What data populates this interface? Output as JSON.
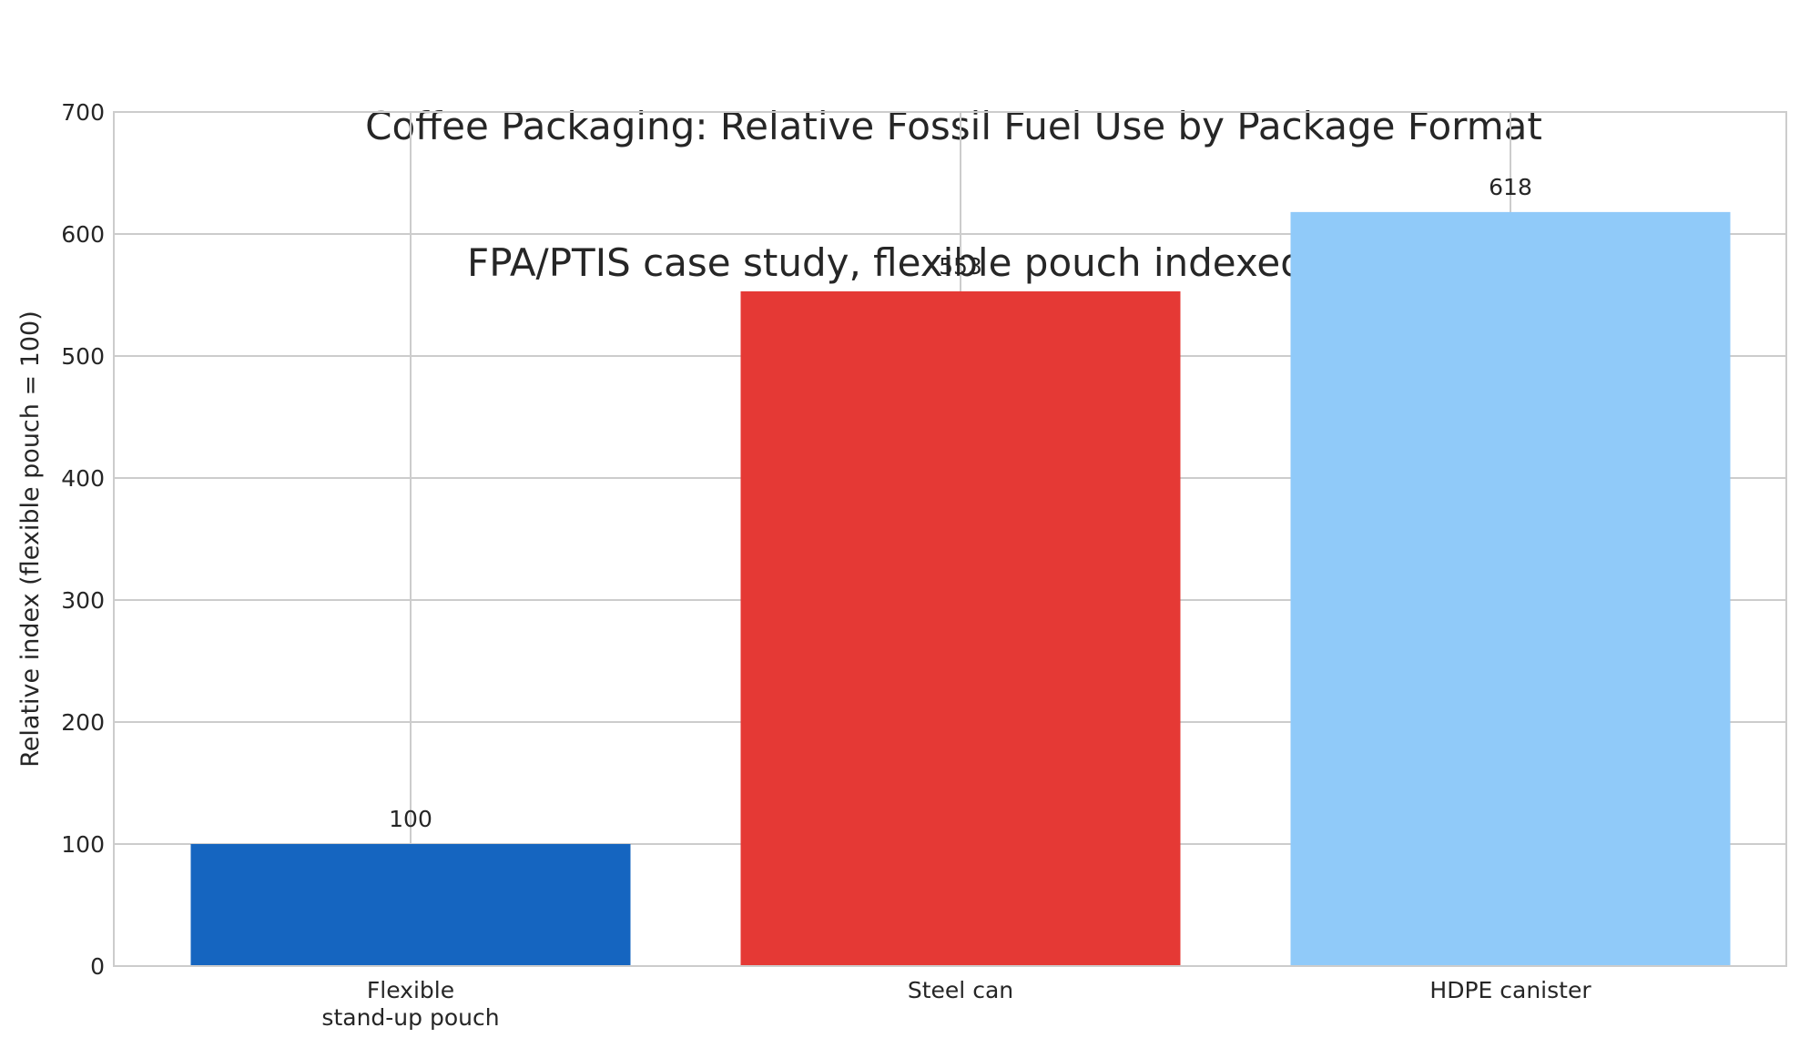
{
  "chart_data": {
    "type": "bar",
    "title": "Coffee Packaging: Relative Fossil Fuel Use by Package Format",
    "subtitle": "FPA/PTIS case study, flexible pouch indexed to 100",
    "xlabel": "",
    "ylabel": "Relative index (flexible pouch = 100)",
    "categories": [
      "Flexible\nstand-up pouch",
      "Steel can",
      "HDPE canister"
    ],
    "values": [
      100,
      553,
      618
    ],
    "data_labels": [
      "100",
      "553",
      "618"
    ],
    "colors": [
      "#1565c0",
      "#e53935",
      "#90caf9"
    ],
    "ylim": [
      0,
      700
    ],
    "yticks": [
      0,
      100,
      200,
      300,
      400,
      500,
      600,
      700
    ],
    "grid": true,
    "legend": "none"
  }
}
